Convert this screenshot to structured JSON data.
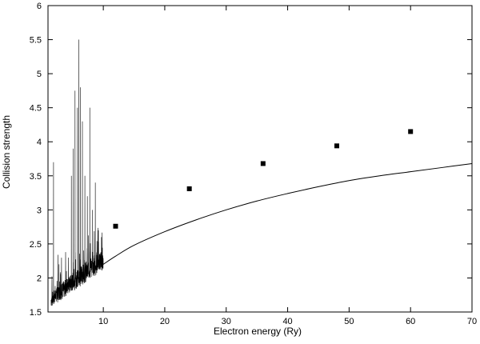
{
  "chart_data": {
    "type": "line",
    "title": "",
    "xlabel": "Electron energy (Ry)",
    "ylabel": "Collision strength",
    "xlim": [
      1,
      70
    ],
    "ylim": [
      1.5,
      6
    ],
    "grid": false,
    "legend": "none",
    "x_ticks": [
      "10",
      "20",
      "30",
      "40",
      "50",
      "60",
      "70"
    ],
    "y_ticks": [
      "1.5",
      "2",
      "2.5",
      "3",
      "3.5",
      "4",
      "4.5",
      "5",
      "5.5",
      "6"
    ],
    "series": [
      {
        "style": "line",
        "color": "#000000",
        "x": [
          10,
          12,
          15,
          20,
          25,
          30,
          35,
          40,
          45,
          50,
          55,
          60,
          65,
          70
        ],
        "y": [
          2.2,
          2.32,
          2.48,
          2.68,
          2.85,
          3.0,
          3.13,
          3.24,
          3.34,
          3.43,
          3.5,
          3.56,
          3.62,
          3.68
        ]
      },
      {
        "style": "resonances",
        "color": "#000000",
        "x_range": [
          1.5,
          10
        ],
        "background_start": 1.62,
        "background_end": 2.2,
        "peaks": [
          {
            "x": 1.9,
            "y": 3.7
          },
          {
            "x": 2.8,
            "y": 2.2
          },
          {
            "x": 4.0,
            "y": 2.1
          },
          {
            "x": 4.8,
            "y": 3.5
          },
          {
            "x": 5.1,
            "y": 3.9
          },
          {
            "x": 5.4,
            "y": 4.75
          },
          {
            "x": 5.8,
            "y": 4.5
          },
          {
            "x": 6.0,
            "y": 5.5
          },
          {
            "x": 6.3,
            "y": 4.8
          },
          {
            "x": 6.6,
            "y": 4.3
          },
          {
            "x": 7.0,
            "y": 3.5
          },
          {
            "x": 7.4,
            "y": 3.2
          },
          {
            "x": 7.8,
            "y": 4.5
          },
          {
            "x": 8.2,
            "y": 3.0
          },
          {
            "x": 8.7,
            "y": 3.4
          },
          {
            "x": 9.2,
            "y": 2.7
          },
          {
            "x": 9.7,
            "y": 2.6
          }
        ]
      },
      {
        "style": "points",
        "color": "#000000",
        "x": [
          12,
          24,
          36,
          48,
          60
        ],
        "y": [
          2.76,
          3.31,
          3.68,
          3.94,
          4.15
        ]
      }
    ]
  }
}
